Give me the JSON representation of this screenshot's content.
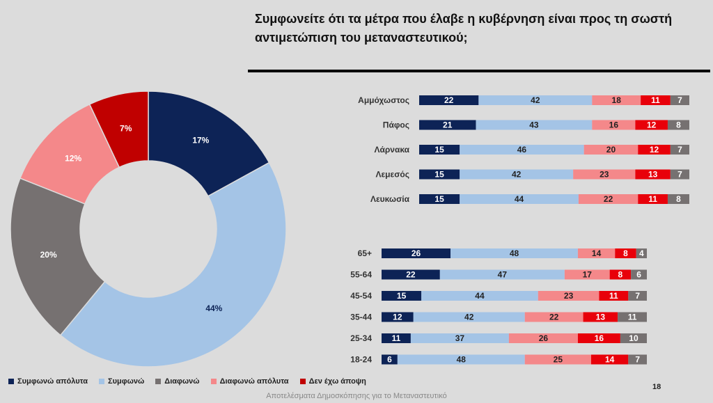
{
  "title": "Συμφωνείτε ότι τα μέτρα που έλαβε η κυβέρνηση είναι προς τη σωστή αντιμετώπιση του μεταναστευτικού;",
  "page_number": "18",
  "footer": "Αποτελέσματα Δημοσκόπησης για το Μεταναστευτικό",
  "colors": {
    "strongly_agree": "#0d2356",
    "agree": "#a4c4e6",
    "disagree": "#767171",
    "strongly_disagree": "#f4888a",
    "no_opinion": "#c00000"
  },
  "legend": [
    {
      "label": "Συμφωνώ απόλυτα",
      "color": "#0d2356"
    },
    {
      "label": "Συμφωνώ",
      "color": "#a4c4e6"
    },
    {
      "label": "Διαφωνώ",
      "color": "#767171"
    },
    {
      "label": "Διαφωνώ απόλυτα",
      "color": "#f4888a"
    },
    {
      "label": "Δεν έχω άποψη",
      "color": "#c00000"
    }
  ],
  "chart_data": [
    {
      "type": "pie",
      "slices": [
        {
          "name": "Συμφωνώ απόλυτα",
          "value": 17,
          "label": "17%"
        },
        {
          "name": "Συμφωνώ",
          "value": 44,
          "label": "44%"
        },
        {
          "name": "Διαφωνώ",
          "value": 20,
          "label": "20%"
        },
        {
          "name": "Διαφωνώ απόλυτα",
          "value": 12,
          "label": "12%"
        },
        {
          "name": "Δεν έχω άποψη",
          "value": 7,
          "label": "7%"
        }
      ]
    },
    {
      "type": "bar",
      "orientation": "horizontal",
      "stacked": true,
      "segment_colors": [
        "#0d2356",
        "#a4c4e6",
        "#f4888a",
        "#e8000a",
        "#767171"
      ],
      "categories": [
        "Αμμόχωστος",
        "Πάφος",
        "Λάρνακα",
        "Λεμεσός",
        "Λευκωσία"
      ],
      "rows": [
        [
          22,
          42,
          18,
          11,
          7
        ],
        [
          21,
          43,
          16,
          12,
          8
        ],
        [
          15,
          46,
          20,
          12,
          7
        ],
        [
          15,
          42,
          23,
          13,
          7
        ],
        [
          15,
          44,
          22,
          11,
          8
        ]
      ]
    },
    {
      "type": "bar",
      "orientation": "horizontal",
      "stacked": true,
      "segment_colors": [
        "#0d2356",
        "#a4c4e6",
        "#f4888a",
        "#e8000a",
        "#767171"
      ],
      "categories": [
        "65+",
        "55-64",
        "45-54",
        "35-44",
        "25-34",
        "18-24"
      ],
      "rows": [
        [
          26,
          48,
          14,
          8,
          4
        ],
        [
          22,
          47,
          17,
          8,
          6
        ],
        [
          15,
          44,
          23,
          11,
          7
        ],
        [
          12,
          42,
          22,
          13,
          11
        ],
        [
          11,
          37,
          26,
          16,
          10
        ],
        [
          6,
          48,
          25,
          14,
          7
        ]
      ]
    }
  ]
}
